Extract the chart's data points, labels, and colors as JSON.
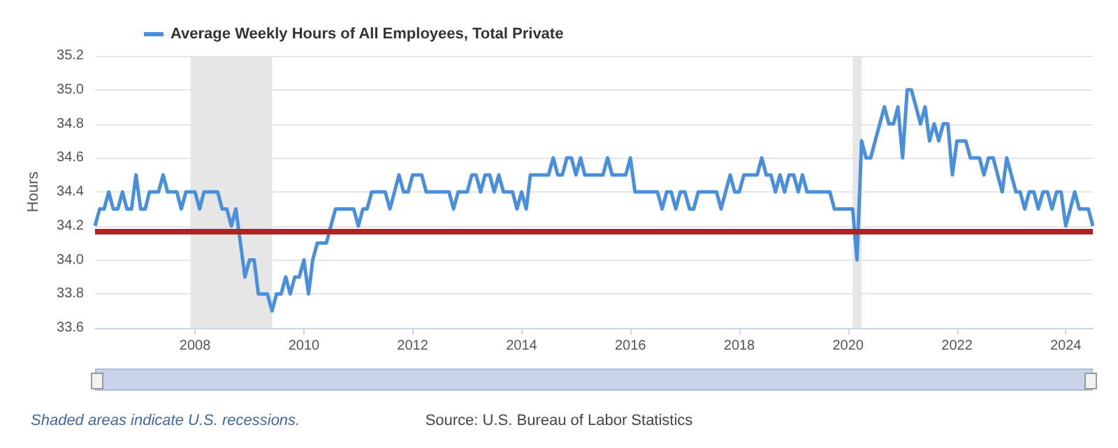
{
  "chart_data": {
    "type": "line",
    "ylabel": "Hours",
    "legend": "top left",
    "grid": "y",
    "marker": "none",
    "line_style": "solid",
    "annotations": [
      "Shaded areas indicate U.S. recessions.",
      "Source: U.S. Bureau of Labor Statistics"
    ],
    "xlim": [
      "2006-03",
      "2024-07"
    ],
    "xticks": [
      "2008",
      "2010",
      "2012",
      "2014",
      "2016",
      "2018",
      "2020",
      "2022",
      "2024"
    ],
    "ylim": [
      33.6,
      35.2
    ],
    "yticks": [
      33.6,
      33.8,
      {
        "value": 34,
        "label": "34.0"
      },
      34.2,
      34.4,
      34.6,
      34.8,
      {
        "value": 35,
        "label": "35.0"
      },
      35.2
    ],
    "bands": [
      {
        "axis": "x",
        "from": "2007-12",
        "to": "2009-06",
        "color": "#e6e6e6"
      },
      {
        "axis": "x",
        "from": "2020-02",
        "to": "2020-04",
        "color": "#e6e6e6"
      }
    ],
    "ref_lines": [
      {
        "axis": "y",
        "value": 34.17,
        "color": "#b22222"
      }
    ],
    "x": [
      "2006-03",
      "2006-04",
      "2006-05",
      "2006-06",
      "2006-07",
      "2006-08",
      "2006-09",
      "2006-10",
      "2006-11",
      "2006-12",
      "2007-01",
      "2007-02",
      "2007-03",
      "2007-04",
      "2007-05",
      "2007-06",
      "2007-07",
      "2007-08",
      "2007-09",
      "2007-10",
      "2007-11",
      "2007-12",
      "2008-01",
      "2008-02",
      "2008-03",
      "2008-04",
      "2008-05",
      "2008-06",
      "2008-07",
      "2008-08",
      "2008-09",
      "2008-10",
      "2008-11",
      "2008-12",
      "2009-01",
      "2009-02",
      "2009-03",
      "2009-04",
      "2009-05",
      "2009-06",
      "2009-07",
      "2009-08",
      "2009-09",
      "2009-10",
      "2009-11",
      "2009-12",
      "2010-01",
      "2010-02",
      "2010-03",
      "2010-04",
      "2010-05",
      "2010-06",
      "2010-07",
      "2010-08",
      "2010-09",
      "2010-10",
      "2010-11",
      "2010-12",
      "2011-01",
      "2011-02",
      "2011-03",
      "2011-04",
      "2011-05",
      "2011-06",
      "2011-07",
      "2011-08",
      "2011-09",
      "2011-10",
      "2011-11",
      "2011-12",
      "2012-01",
      "2012-02",
      "2012-03",
      "2012-04",
      "2012-05",
      "2012-06",
      "2012-07",
      "2012-08",
      "2012-09",
      "2012-10",
      "2012-11",
      "2012-12",
      "2013-01",
      "2013-02",
      "2013-03",
      "2013-04",
      "2013-05",
      "2013-06",
      "2013-07",
      "2013-08",
      "2013-09",
      "2013-10",
      "2013-11",
      "2013-12",
      "2014-01",
      "2014-02",
      "2014-03",
      "2014-04",
      "2014-05",
      "2014-06",
      "2014-07",
      "2014-08",
      "2014-09",
      "2014-10",
      "2014-11",
      "2014-12",
      "2015-01",
      "2015-02",
      "2015-03",
      "2015-04",
      "2015-05",
      "2015-06",
      "2015-07",
      "2015-08",
      "2015-09",
      "2015-10",
      "2015-11",
      "2015-12",
      "2016-01",
      "2016-02",
      "2016-03",
      "2016-04",
      "2016-05",
      "2016-06",
      "2016-07",
      "2016-08",
      "2016-09",
      "2016-10",
      "2016-11",
      "2016-12",
      "2017-01",
      "2017-02",
      "2017-03",
      "2017-04",
      "2017-05",
      "2017-06",
      "2017-07",
      "2017-08",
      "2017-09",
      "2017-10",
      "2017-11",
      "2017-12",
      "2018-01",
      "2018-02",
      "2018-03",
      "2018-04",
      "2018-05",
      "2018-06",
      "2018-07",
      "2018-08",
      "2018-09",
      "2018-10",
      "2018-11",
      "2018-12",
      "2019-01",
      "2019-02",
      "2019-03",
      "2019-04",
      "2019-05",
      "2019-06",
      "2019-07",
      "2019-08",
      "2019-09",
      "2019-10",
      "2019-11",
      "2019-12",
      "2020-01",
      "2020-02",
      "2020-03",
      "2020-04",
      "2020-05",
      "2020-06",
      "2020-07",
      "2020-08",
      "2020-09",
      "2020-10",
      "2020-11",
      "2020-12",
      "2021-01",
      "2021-02",
      "2021-03",
      "2021-04",
      "2021-05",
      "2021-06",
      "2021-07",
      "2021-08",
      "2021-09",
      "2021-10",
      "2021-11",
      "2021-12",
      "2022-01",
      "2022-02",
      "2022-03",
      "2022-04",
      "2022-05",
      "2022-06",
      "2022-07",
      "2022-08",
      "2022-09",
      "2022-10",
      "2022-11",
      "2022-12",
      "2023-01",
      "2023-02",
      "2023-03",
      "2023-04",
      "2023-05",
      "2023-06",
      "2023-07",
      "2023-08",
      "2023-09",
      "2023-10",
      "2023-11",
      "2023-12",
      "2024-01",
      "2024-02",
      "2024-03",
      "2024-04",
      "2024-05",
      "2024-06",
      "2024-07"
    ],
    "series": [
      {
        "name": "Average Weekly Hours of All Employees, Total Private",
        "color": "#4a8fdc",
        "values": [
          34.2,
          34.3,
          34.3,
          34.4,
          34.3,
          34.3,
          34.4,
          34.3,
          34.3,
          34.5,
          34.3,
          34.3,
          34.4,
          34.4,
          34.4,
          34.5,
          34.4,
          34.4,
          34.4,
          34.3,
          34.4,
          34.4,
          34.4,
          34.3,
          34.4,
          34.4,
          34.4,
          34.4,
          34.3,
          34.3,
          34.2,
          34.3,
          34.1,
          33.9,
          34.0,
          34.0,
          33.8,
          33.8,
          33.8,
          33.7,
          33.8,
          33.8,
          33.9,
          33.8,
          33.9,
          33.9,
          34.0,
          33.8,
          34.0,
          34.1,
          34.1,
          34.1,
          34.2,
          34.3,
          34.3,
          34.3,
          34.3,
          34.3,
          34.2,
          34.3,
          34.3,
          34.4,
          34.4,
          34.4,
          34.4,
          34.3,
          34.4,
          34.5,
          34.4,
          34.4,
          34.5,
          34.5,
          34.5,
          34.4,
          34.4,
          34.4,
          34.4,
          34.4,
          34.4,
          34.3,
          34.4,
          34.4,
          34.4,
          34.5,
          34.5,
          34.4,
          34.5,
          34.5,
          34.4,
          34.5,
          34.4,
          34.4,
          34.4,
          34.3,
          34.4,
          34.3,
          34.5,
          34.5,
          34.5,
          34.5,
          34.5,
          34.6,
          34.5,
          34.5,
          34.6,
          34.6,
          34.5,
          34.6,
          34.5,
          34.5,
          34.5,
          34.5,
          34.5,
          34.6,
          34.5,
          34.5,
          34.5,
          34.5,
          34.6,
          34.4,
          34.4,
          34.4,
          34.4,
          34.4,
          34.4,
          34.3,
          34.4,
          34.4,
          34.3,
          34.4,
          34.4,
          34.3,
          34.3,
          34.4,
          34.4,
          34.4,
          34.4,
          34.4,
          34.3,
          34.4,
          34.5,
          34.4,
          34.4,
          34.5,
          34.5,
          34.5,
          34.5,
          34.6,
          34.5,
          34.5,
          34.4,
          34.5,
          34.4,
          34.5,
          34.5,
          34.4,
          34.5,
          34.4,
          34.4,
          34.4,
          34.4,
          34.4,
          34.4,
          34.3,
          34.3,
          34.3,
          34.3,
          34.3,
          34.0,
          34.7,
          34.6,
          34.6,
          34.7,
          34.8,
          34.9,
          34.8,
          34.8,
          34.9,
          34.6,
          35.0,
          35.0,
          34.9,
          34.8,
          34.9,
          34.7,
          34.8,
          34.7,
          34.8,
          34.8,
          34.5,
          34.7,
          34.7,
          34.7,
          34.6,
          34.6,
          34.6,
          34.5,
          34.6,
          34.6,
          34.5,
          34.4,
          34.6,
          34.5,
          34.4,
          34.4,
          34.3,
          34.4,
          34.4,
          34.3,
          34.4,
          34.4,
          34.3,
          34.4,
          34.4,
          34.2,
          34.3,
          34.4,
          34.3,
          34.3,
          34.3,
          34.2
        ]
      }
    ]
  }
}
